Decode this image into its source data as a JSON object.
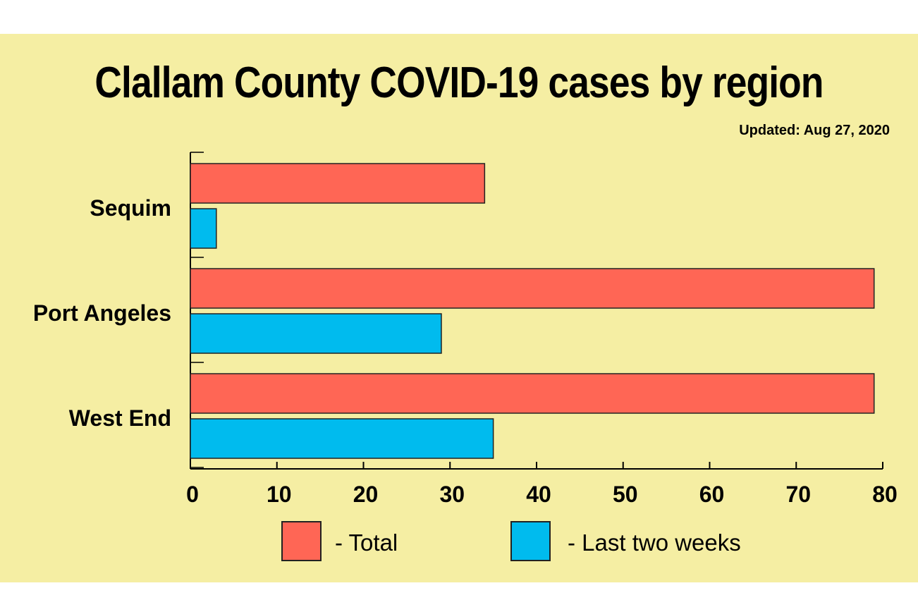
{
  "chart_data": {
    "type": "bar",
    "orientation": "horizontal",
    "title": "Clallam County COVID-19 cases by region",
    "subtitle": "Updated: Aug 27, 2020",
    "categories": [
      "Sequim",
      "Port Angeles",
      "West End"
    ],
    "series": [
      {
        "name": "- Total",
        "color": "#ff6655",
        "values": [
          34,
          79,
          79
        ]
      },
      {
        "name": "- Last two weeks",
        "color": "#00bbee",
        "values": [
          3,
          29,
          35
        ]
      }
    ],
    "xlim": [
      0,
      80
    ],
    "xticks": [
      "0",
      "10",
      "20",
      "30",
      "40",
      "50",
      "60",
      "70",
      "80"
    ],
    "xlabel": "",
    "ylabel": "",
    "grid": false,
    "legend": "bottom",
    "background": "#f5eea3"
  }
}
